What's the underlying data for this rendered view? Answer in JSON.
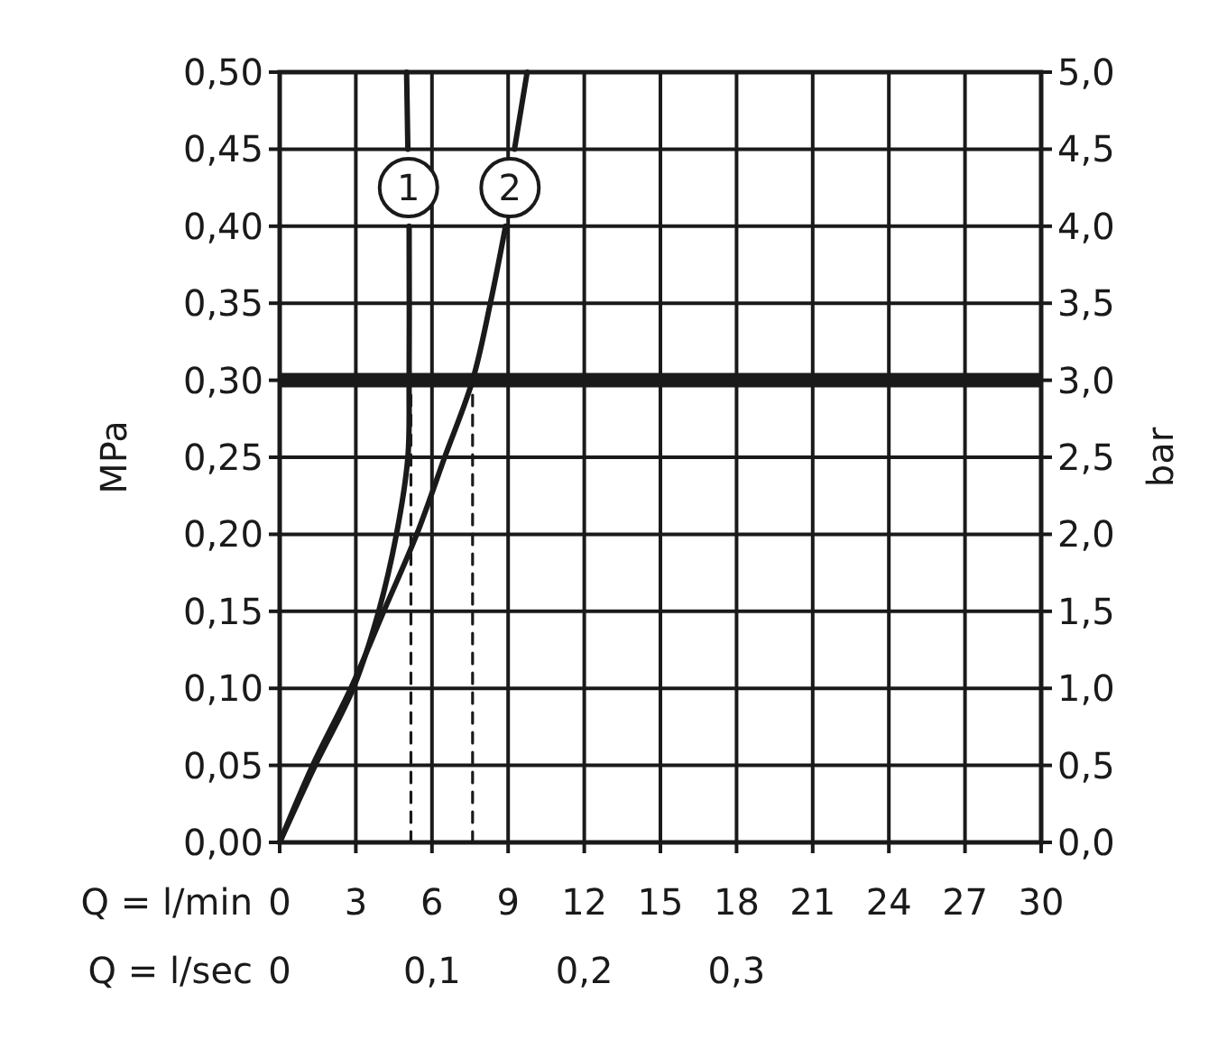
{
  "chart_data": {
    "type": "line",
    "xlabel": "Q = l/min",
    "x2label": "Q = l/sec",
    "ylabel": "MPa",
    "y2label": "bar",
    "xlim": [
      0,
      30
    ],
    "xticks": [
      0,
      3,
      6,
      9,
      12,
      15,
      18,
      21,
      24,
      27,
      30
    ],
    "x2lim": [
      0,
      0.5
    ],
    "x2ticks": [
      0,
      {
        "value": 0.1,
        "label": "0,1"
      },
      {
        "value": 0.2,
        "label": "0,2"
      },
      {
        "value": 0.3,
        "label": "0,3"
      }
    ],
    "ylim": [
      0,
      0.5
    ],
    "yticks": [
      {
        "value": 0,
        "label": "0,00"
      },
      {
        "value": 0.05,
        "label": "0,05"
      },
      {
        "value": 0.1,
        "label": "0,10"
      },
      {
        "value": 0.15,
        "label": "0,15"
      },
      {
        "value": 0.2,
        "label": "0,20"
      },
      {
        "value": 0.25,
        "label": "0,25"
      },
      {
        "value": 0.3,
        "label": "0,30"
      },
      {
        "value": 0.35,
        "label": "0,35"
      },
      {
        "value": 0.4,
        "label": "0,40"
      },
      {
        "value": 0.45,
        "label": "0,45"
      },
      {
        "value": 0.5,
        "label": "0,50"
      }
    ],
    "y2lim": [
      0,
      5
    ],
    "y2ticks": [
      {
        "value": 0,
        "label": "0,0"
      },
      {
        "value": 0.5,
        "label": "0,5"
      },
      {
        "value": 1,
        "label": "1,0"
      },
      {
        "value": 1.5,
        "label": "1,5"
      },
      {
        "value": 2,
        "label": "2,0"
      },
      {
        "value": 2.5,
        "label": "2,5"
      },
      {
        "value": 3,
        "label": "3,0"
      },
      {
        "value": 3.5,
        "label": "3,5"
      },
      {
        "value": 4,
        "label": "4,0"
      },
      {
        "value": 4.5,
        "label": "4,5"
      },
      {
        "value": 5,
        "label": "5,0"
      }
    ],
    "grid": true,
    "ref_lines": [
      {
        "axis": "y",
        "value": 0.3,
        "color": "#1a1a1a"
      }
    ],
    "series": [
      {
        "name": "1",
        "color": "#1a1a1a",
        "line_style": "solid",
        "x": [
          0,
          1.4,
          2.9,
          3.9,
          4.6,
          5.05,
          5.1,
          5.1,
          null,
          5.05,
          5.0
        ],
        "values": [
          0,
          0.05,
          0.1,
          0.15,
          0.2,
          0.25,
          0.3,
          0.4,
          null,
          0.45,
          0.5
        ]
      },
      {
        "name": "2",
        "color": "#1a1a1a",
        "line_style": "solid",
        "x": [
          0,
          1.3,
          2.8,
          4.1,
          5.4,
          6.5,
          7.6,
          8.3,
          8.9,
          null,
          9.25,
          9.75
        ],
        "values": [
          0,
          0.05,
          0.1,
          0.15,
          0.2,
          0.25,
          0.3,
          0.35,
          0.4,
          null,
          0.45,
          0.5
        ]
      },
      {
        "color": "#1a1a1a",
        "line_style": "dashed",
        "x": [
          5.17,
          5.17
        ],
        "values": [
          0,
          0.3
        ]
      },
      {
        "color": "#1a1a1a",
        "line_style": "dashed",
        "x": [
          7.6,
          7.6
        ],
        "values": [
          0,
          0.3
        ]
      }
    ]
  }
}
